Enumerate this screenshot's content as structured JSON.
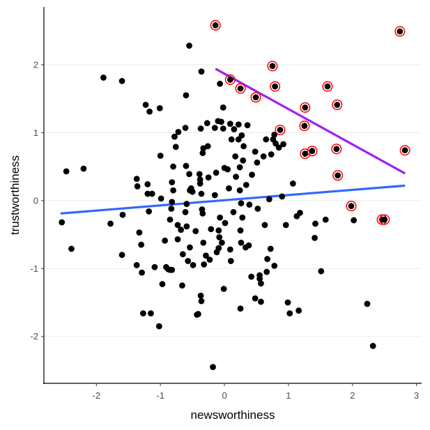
{
  "chart_data": {
    "type": "scatter",
    "title": "",
    "xlabel": "newsworthiness",
    "ylabel": "trustworthiness",
    "xlim": [
      -2.82,
      3.08
    ],
    "ylim": [
      -2.69,
      2.85
    ],
    "xticks": [
      -2,
      -1,
      0,
      1,
      2,
      3
    ],
    "yticks": [
      -2,
      -1,
      0,
      1,
      2
    ],
    "grid": "horizontal major",
    "colors": {
      "points": "#000000",
      "selected_ring": "#ff0000",
      "all_fit": "#3366ff",
      "selected_fit": "#a020f0",
      "grid": "#ebebeb"
    },
    "points": [
      [
        -2.54,
        -0.32
      ],
      [
        -2.47,
        0.43
      ],
      [
        -2.39,
        -0.71
      ],
      [
        -2.2,
        0.47
      ],
      [
        -1.89,
        1.81
      ],
      [
        -1.78,
        -0.34
      ],
      [
        -1.6,
        1.76
      ],
      [
        -1.6,
        -0.8
      ],
      [
        -1.59,
        -0.21
      ],
      [
        -1.37,
        0.32
      ],
      [
        -1.36,
        0.21
      ],
      [
        -1.37,
        -0.95
      ],
      [
        -1.3,
        -0.65
      ],
      [
        -1.33,
        -0.47
      ],
      [
        -1.29,
        -1.06
      ],
      [
        -1.27,
        -1.66
      ],
      [
        -1.23,
        1.41
      ],
      [
        -1.2,
        0.24
      ],
      [
        -1.2,
        0.1
      ],
      [
        -1.18,
        -0.16
      ],
      [
        -1.17,
        1.31
      ],
      [
        -1.13,
        0.1
      ],
      [
        -1.15,
        -1.66
      ],
      [
        -1.09,
        -0.98
      ],
      [
        -1.01,
        1.36
      ],
      [
        -1.02,
        -1.85
      ],
      [
        -1.0,
        0.66
      ],
      [
        -0.99,
        0.03
      ],
      [
        -0.97,
        -1.23
      ],
      [
        -0.93,
        -0.59
      ],
      [
        -0.91,
        -0.98
      ],
      [
        -0.85,
        -1.02
      ],
      [
        -0.85,
        -0.28
      ],
      [
        -0.82,
        0.27
      ],
      [
        -0.82,
        -0.02
      ],
      [
        -0.83,
        -0.12
      ],
      [
        -0.8,
        0.5
      ],
      [
        -0.8,
        0.15
      ],
      [
        -0.78,
        0.94
      ],
      [
        -0.76,
        0.79
      ],
      [
        -0.73,
        -0.36
      ],
      [
        -0.73,
        -0.57
      ],
      [
        -0.72,
        1.01
      ],
      [
        -0.68,
        -0.43
      ],
      [
        -0.66,
        -1.25
      ],
      [
        -0.65,
        -0.79
      ],
      [
        -0.61,
        1.07
      ],
      [
        -0.61,
        -0.17
      ],
      [
        -0.6,
        0.51
      ],
      [
        -0.59,
        -0.05
      ],
      [
        -0.59,
        -0.38
      ],
      [
        -0.57,
        -0.89
      ],
      [
        -0.55,
        2.28
      ],
      [
        -0.55,
        0.39
      ],
      [
        -0.54,
        0.15
      ],
      [
        -0.54,
        -0.69
      ],
      [
        -0.52,
        0.18
      ],
      [
        -0.5,
        0.13
      ],
      [
        -0.49,
        -0.95
      ],
      [
        -0.45,
        -0.45
      ],
      [
        -0.39,
        0.39
      ],
      [
        -0.38,
        0.31
      ],
      [
        -0.38,
        0.25
      ],
      [
        -0.37,
        1.06
      ],
      [
        -0.36,
        0.1
      ],
      [
        -0.35,
        -0.13
      ],
      [
        -0.34,
        0.7
      ],
      [
        -0.34,
        -0.19
      ],
      [
        -0.33,
        -0.62
      ],
      [
        -0.33,
        0.77
      ],
      [
        -0.32,
        -0.94
      ],
      [
        -0.29,
        -0.81
      ],
      [
        -0.27,
        1.14
      ],
      [
        -0.26,
        0.8
      ],
      [
        -0.25,
        0.34
      ],
      [
        -0.23,
        -0.87
      ],
      [
        -0.21,
        -0.42
      ],
      [
        -0.15,
        1.07
      ],
      [
        -0.15,
        0.08
      ],
      [
        -0.13,
        0.41
      ],
      [
        -0.12,
        -0.76
      ],
      [
        -0.1,
        1.17
      ],
      [
        -0.09,
        -0.44
      ],
      [
        -0.09,
        -0.7
      ],
      [
        -0.08,
        -0.54
      ],
      [
        -0.07,
        1.72
      ],
      [
        -0.07,
        -0.25
      ],
      [
        -0.04,
        -0.62
      ],
      [
        -0.05,
        1.16
      ],
      [
        -0.02,
        1.37
      ],
      [
        -0.01,
        -1.3
      ],
      [
        0.01,
        -0.33
      ],
      [
        -0.18,
        -2.45
      ],
      [
        -0.36,
        1.9
      ],
      [
        -0.6,
        1.55
      ],
      [
        -0.37,
        -1.4
      ],
      [
        -0.36,
        -1.48
      ],
      [
        -0.43,
        -1.68
      ],
      [
        -0.41,
        -1.67
      ],
      [
        -0.82,
        -1.02
      ],
      [
        -0.88,
        -1.01
      ],
      [
        0.05,
        0.46
      ],
      [
        0.07,
        0.18
      ],
      [
        0.09,
        1.13
      ],
      [
        0.09,
        -0.72
      ],
      [
        0.1,
        -0.89
      ],
      [
        0.11,
        0.9
      ],
      [
        0.14,
        -0.17
      ],
      [
        0.15,
        1.05
      ],
      [
        0.17,
        0.65
      ],
      [
        0.18,
        0.35
      ],
      [
        0.22,
        1.12
      ],
      [
        0.22,
        0.9
      ],
      [
        0.24,
        0.49
      ],
      [
        0.24,
        0.15
      ],
      [
        0.25,
        -0.44
      ],
      [
        0.25,
        -1.59
      ],
      [
        0.26,
        -0.04
      ],
      [
        0.26,
        -0.62
      ],
      [
        0.27,
        0.96
      ],
      [
        0.28,
        -0.25
      ],
      [
        0.29,
        0.59
      ],
      [
        0.3,
        0.8
      ],
      [
        0.33,
        -0.69
      ],
      [
        0.34,
        0.23
      ],
      [
        0.36,
        1.11
      ],
      [
        0.38,
        -0.66
      ],
      [
        0.39,
        -0.06
      ],
      [
        0.42,
        -1.12
      ],
      [
        0.43,
        0.38
      ],
      [
        0.48,
        -1.44
      ],
      [
        0.48,
        0.72
      ],
      [
        0.51,
        0.56
      ],
      [
        0.52,
        -0.12
      ],
      [
        0.55,
        -1.1
      ],
      [
        0.57,
        -1.49
      ],
      [
        0.57,
        -1.22
      ],
      [
        0.61,
        0.65
      ],
      [
        0.63,
        -0.36
      ],
      [
        0.65,
        0.9
      ],
      [
        0.66,
        -1.05
      ],
      [
        0.67,
        -0.86
      ],
      [
        0.7,
        0.02
      ],
      [
        0.72,
        -0.71
      ],
      [
        0.73,
        0.68
      ],
      [
        0.76,
        0.9
      ],
      [
        0.78,
        0.97
      ],
      [
        0.78,
        -0.96
      ],
      [
        0.8,
        0.84
      ],
      [
        0.85,
        0.78
      ],
      [
        0.9,
        0.06
      ],
      [
        0.92,
        0.83
      ],
      [
        0.96,
        -0.36
      ],
      [
        0.99,
        -1.5
      ],
      [
        1.02,
        -1.66
      ],
      [
        1.07,
        0.25
      ],
      [
        1.13,
        -0.23
      ],
      [
        1.16,
        -1.62
      ],
      [
        1.18,
        -0.18
      ],
      [
        1.41,
        -0.55
      ],
      [
        1.42,
        -0.34
      ],
      [
        1.51,
        -1.04
      ],
      [
        1.58,
        -0.28
      ],
      [
        2.02,
        -0.29
      ],
      [
        2.23,
        -1.52
      ],
      [
        2.32,
        -2.14
      ],
      [
        -0.02,
        1.06
      ],
      [
        0.0,
        0.48
      ],
      [
        0.55,
        -1.15
      ]
    ],
    "selected_points": [
      [
        -0.14,
        2.58
      ],
      [
        2.74,
        2.49
      ],
      [
        0.75,
        1.98
      ],
      [
        0.09,
        1.78
      ],
      [
        0.79,
        1.68
      ],
      [
        0.25,
        1.65
      ],
      [
        0.49,
        1.52
      ],
      [
        1.61,
        1.68
      ],
      [
        1.76,
        1.41
      ],
      [
        1.26,
        1.37
      ],
      [
        0.87,
        1.04
      ],
      [
        1.25,
        1.1
      ],
      [
        1.26,
        0.69
      ],
      [
        1.37,
        0.73
      ],
      [
        1.75,
        0.76
      ],
      [
        2.82,
        0.74
      ],
      [
        1.77,
        0.37
      ],
      [
        1.98,
        -0.08
      ],
      [
        2.46,
        -0.28
      ],
      [
        2.5,
        -0.28
      ]
    ],
    "fit_lines": [
      {
        "name": "all",
        "x": [
          -2.56,
          2.82
        ],
        "y": [
          -0.19,
          0.22
        ],
        "color": "#3366ff"
      },
      {
        "name": "selected",
        "x": [
          -0.14,
          2.82
        ],
        "y": [
          1.94,
          0.4
        ],
        "color": "#a020f0"
      }
    ]
  }
}
